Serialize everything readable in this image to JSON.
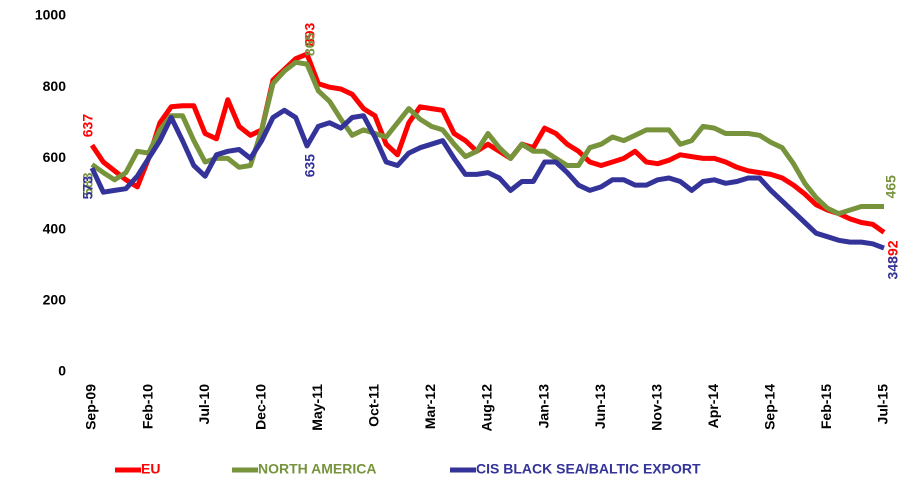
{
  "chart_data": {
    "type": "line",
    "categories": [
      "Sep-09",
      null,
      null,
      null,
      null,
      "Feb-10",
      null,
      null,
      null,
      null,
      "Jul-10",
      null,
      null,
      null,
      null,
      "Dec-10",
      null,
      null,
      null,
      null,
      "May-11",
      null,
      null,
      null,
      null,
      "Oct-11",
      null,
      null,
      null,
      null,
      "Mar-12",
      null,
      null,
      null,
      null,
      "Aug-12",
      null,
      null,
      null,
      null,
      "Jan-13",
      null,
      null,
      null,
      null,
      "Jun-13",
      null,
      null,
      null,
      null,
      "Nov-13",
      null,
      null,
      null,
      null,
      "Apr-14",
      null,
      null,
      null,
      null,
      "Sep-14",
      null,
      null,
      null,
      null,
      "Feb-15",
      null,
      null,
      null,
      null,
      "Jul-15"
    ],
    "series": [
      {
        "name": "EU",
        "color": "#ff0000",
        "values": [
          637,
          590,
          565,
          540,
          520,
          600,
          700,
          745,
          748,
          748,
          670,
          655,
          765,
          690,
          665,
          680,
          820,
          850,
          880,
          893,
          810,
          800,
          795,
          780,
          740,
          720,
          640,
          610,
          700,
          745,
          740,
          735,
          670,
          650,
          620,
          640,
          620,
          600,
          640,
          630,
          685,
          670,
          640,
          620,
          590,
          580,
          590,
          600,
          620,
          590,
          585,
          595,
          610,
          605,
          600,
          600,
          590,
          575,
          565,
          560,
          555,
          545,
          525,
          500,
          470,
          455,
          445,
          430,
          420,
          415,
          392
        ],
        "value_labels": [
          "637",
          null,
          null,
          null,
          null,
          null,
          null,
          null,
          null,
          null,
          null,
          null,
          null,
          null,
          null,
          null,
          null,
          null,
          null,
          "893",
          null,
          null,
          null,
          null,
          null,
          null,
          null,
          null,
          null,
          null,
          null,
          null,
          null,
          null,
          null,
          null,
          null,
          null,
          null,
          null,
          null,
          null,
          null,
          null,
          null,
          null,
          null,
          null,
          null,
          null,
          null,
          null,
          null,
          null,
          null,
          null,
          null,
          null,
          null,
          null,
          null,
          null,
          null,
          null,
          null,
          null,
          null,
          null,
          null,
          null,
          "392"
        ]
      },
      {
        "name": "NORTH AMERICA",
        "color": "#77933c",
        "values": [
          583,
          560,
          540,
          560,
          620,
          615,
          680,
          720,
          720,
          650,
          590,
          600,
          600,
          575,
          580,
          680,
          810,
          845,
          870,
          865,
          790,
          760,
          710,
          665,
          680,
          670,
          660,
          700,
          740,
          710,
          690,
          680,
          640,
          605,
          620,
          670,
          630,
          600,
          640,
          620,
          620,
          600,
          580,
          580,
          630,
          640,
          660,
          650,
          665,
          680,
          680,
          680,
          640,
          650,
          690,
          685,
          670,
          670,
          670,
          665,
          645,
          630,
          585,
          530,
          490,
          460,
          445,
          455,
          465,
          465,
          465
        ],
        "value_labels": [
          "583",
          null,
          null,
          null,
          null,
          null,
          null,
          null,
          null,
          null,
          null,
          null,
          null,
          null,
          null,
          null,
          null,
          null,
          null,
          "865",
          null,
          null,
          null,
          null,
          null,
          null,
          null,
          null,
          null,
          null,
          null,
          null,
          null,
          null,
          null,
          null,
          null,
          null,
          null,
          null,
          null,
          null,
          null,
          null,
          null,
          null,
          null,
          null,
          null,
          null,
          null,
          null,
          null,
          null,
          null,
          null,
          null,
          null,
          null,
          null,
          null,
          null,
          null,
          null,
          null,
          null,
          null,
          null,
          null,
          null,
          "465"
        ]
      },
      {
        "name": "CIS BLACK SEA/BALTIC EXPORT",
        "color": "#333399",
        "values": [
          573,
          505,
          510,
          515,
          550,
          600,
          650,
          715,
          650,
          580,
          550,
          610,
          620,
          625,
          600,
          650,
          715,
          735,
          715,
          635,
          690,
          700,
          685,
          715,
          720,
          660,
          590,
          580,
          615,
          630,
          640,
          650,
          600,
          555,
          555,
          560,
          545,
          510,
          535,
          535,
          590,
          590,
          560,
          525,
          510,
          520,
          540,
          540,
          525,
          525,
          540,
          545,
          535,
          510,
          535,
          540,
          530,
          535,
          545,
          545,
          510,
          480,
          450,
          420,
          390,
          380,
          370,
          365,
          365,
          360,
          348
        ],
        "value_labels": [
          "573",
          null,
          null,
          null,
          null,
          null,
          null,
          null,
          null,
          null,
          null,
          null,
          null,
          null,
          null,
          null,
          null,
          null,
          null,
          "635",
          null,
          null,
          null,
          null,
          null,
          null,
          null,
          null,
          null,
          null,
          null,
          null,
          null,
          null,
          null,
          null,
          null,
          null,
          null,
          null,
          null,
          null,
          null,
          null,
          null,
          null,
          null,
          null,
          null,
          null,
          null,
          null,
          null,
          null,
          null,
          null,
          null,
          null,
          null,
          null,
          null,
          null,
          null,
          null,
          null,
          null,
          null,
          null,
          null,
          null,
          "348"
        ]
      }
    ],
    "ylim": [
      0,
      1000
    ],
    "yticks": [
      0,
      200,
      400,
      600,
      800,
      1000
    ],
    "grid": false,
    "legend": "bottom"
  }
}
